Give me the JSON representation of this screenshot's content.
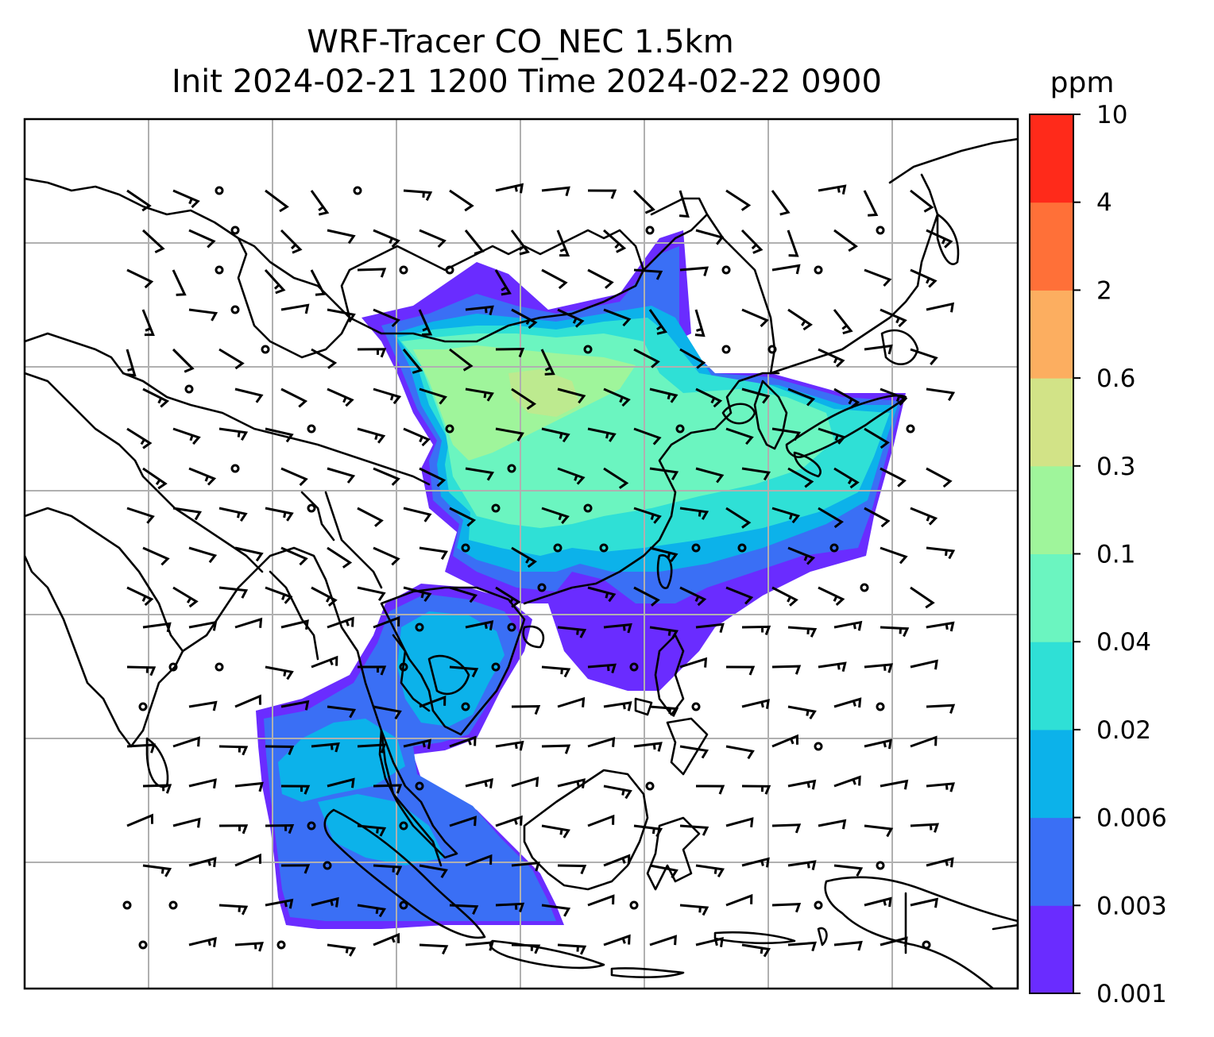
{
  "title_line1": "WRF-Tracer CO_NEC 1.5km",
  "title_line2": "Init 2024-02-21 1200 Time 2024-02-22 0900",
  "colorbar": {
    "unit": "ppm",
    "levels": [
      "0.001",
      "0.003",
      "0.006",
      "0.02",
      "0.04",
      "0.1",
      "0.3",
      "0.6",
      "2",
      "4",
      "10"
    ],
    "colors": [
      "#6a2cff",
      "#3a6ff5",
      "#0cb2ea",
      "#2fe0d6",
      "#6bf5c0",
      "#9ff59b",
      "#d2e387",
      "#fcae60",
      "#ff7038",
      "#ff2a1a"
    ]
  },
  "map": {
    "region": "East and Southeast Asia",
    "gridlines": true,
    "overlays": [
      "coastlines",
      "wind-barbs",
      "CO tracer shading"
    ]
  }
}
